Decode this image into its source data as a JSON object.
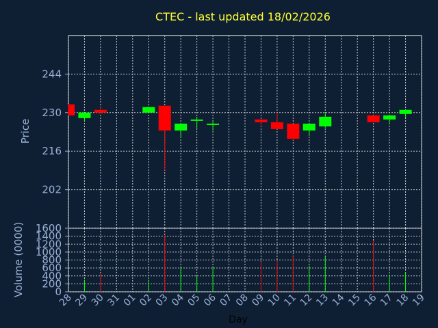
{
  "chart_data": {
    "type": "candlestick",
    "title": "CTEC - last updated 18/02/2026",
    "xlabel": "Day",
    "price_axis": {
      "label": "Price",
      "ylim": [
        188,
        258
      ],
      "ticks": [
        202,
        216,
        230,
        244
      ]
    },
    "volume_axis": {
      "label": "Volume (0000)",
      "ylim": [
        0,
        1600
      ],
      "ticks": [
        0,
        200,
        400,
        600,
        800,
        1000,
        1200,
        1400,
        1600
      ]
    },
    "x_tick_labels": [
      "28",
      "29",
      "30",
      "31",
      "01",
      "02",
      "03",
      "04",
      "05",
      "06",
      "07",
      "08",
      "09",
      "10",
      "11",
      "12",
      "13",
      "14",
      "15",
      "16",
      "17",
      "18",
      "19"
    ],
    "grid": true,
    "colors": {
      "up": "#00ff00",
      "down": "#ff0000",
      "background": "#0f1f33",
      "title": "#ffff33",
      "axis": "#9ab0d6"
    },
    "candles": [
      {
        "day": "28",
        "open": 233,
        "high": 233,
        "low": 229,
        "close": 229,
        "volume": 0
      },
      {
        "day": "29",
        "open": 228,
        "high": 230,
        "low": 227,
        "close": 230,
        "volume": 300
      },
      {
        "day": "30",
        "open": 231,
        "high": 232,
        "low": 229.5,
        "close": 230,
        "volume": 460
      },
      {
        "day": "02",
        "open": 230,
        "high": 232,
        "low": 230,
        "close": 232,
        "volume": 300
      },
      {
        "day": "03",
        "open": 232.5,
        "high": 232.5,
        "low": 209,
        "close": 223.5,
        "volume": 1420
      },
      {
        "day": "04",
        "open": 223.5,
        "high": 226,
        "low": 221,
        "close": 226,
        "volume": 600
      },
      {
        "day": "05",
        "open": 227,
        "high": 228.5,
        "low": 224,
        "close": 227.5,
        "volume": 400
      },
      {
        "day": "06",
        "open": 225.5,
        "high": 227,
        "low": 223.5,
        "close": 226,
        "volume": 620
      },
      {
        "day": "09",
        "open": 227.5,
        "high": 227.5,
        "low": 225,
        "close": 226.5,
        "volume": 760
      },
      {
        "day": "10",
        "open": 226.5,
        "high": 230,
        "low": 224,
        "close": 224,
        "volume": 780
      },
      {
        "day": "11",
        "open": 226,
        "high": 226,
        "low": 220,
        "close": 220.5,
        "volume": 900
      },
      {
        "day": "12",
        "open": 223.5,
        "high": 226,
        "low": 221.5,
        "close": 226,
        "volume": 660
      },
      {
        "day": "13",
        "open": 225,
        "high": 230,
        "low": 224.5,
        "close": 228.5,
        "volume": 880
      },
      {
        "day": "16",
        "open": 229,
        "high": 229,
        "low": 226.5,
        "close": 226.5,
        "volume": 1290
      },
      {
        "day": "17",
        "open": 227.5,
        "high": 229,
        "low": 226,
        "close": 229,
        "volume": 420
      },
      {
        "day": "18",
        "open": 229.5,
        "high": 231,
        "low": 228,
        "close": 231,
        "volume": 490
      }
    ]
  }
}
